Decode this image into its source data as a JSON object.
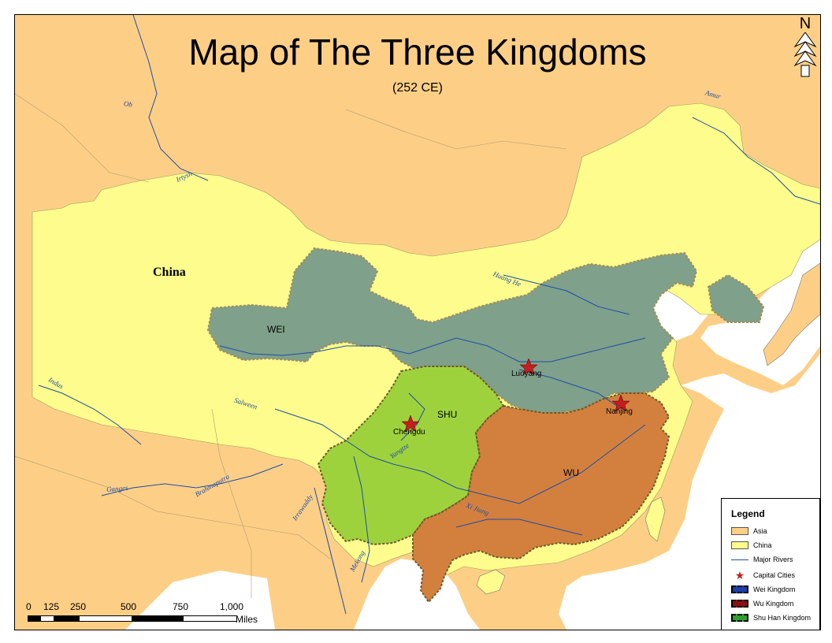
{
  "title": "Map of The Three Kingdoms",
  "subtitle": "(252 CE)",
  "region_labels": {
    "china": "China",
    "wei": "WEI",
    "shu": "SHU",
    "wu": "WU"
  },
  "cities": [
    {
      "name": "Luoyang"
    },
    {
      "name": "Chengdu"
    },
    {
      "name": "Nanjing"
    }
  ],
  "rivers": [
    "Ob",
    "Amur",
    "Irtysh",
    "Huang He",
    "Indus",
    "Salween",
    "Yangtze",
    "Brahmaputra",
    "Ganges",
    "Irrawaddy",
    "Mekong",
    "Xi Jiang"
  ],
  "compass": {
    "letter": "N"
  },
  "legend": {
    "heading": "Legend",
    "items": [
      {
        "label": "Asia",
        "color": "#fdcf86"
      },
      {
        "label": "China",
        "color": "#fdfc8c"
      },
      {
        "label": "Major Rivers",
        "color": "#1f4ea5"
      },
      {
        "label": "Capital Cities",
        "color": "#c41e1e"
      },
      {
        "label": "Wei Kingdom",
        "color": "#1e3fa8"
      },
      {
        "label": "Wu Kingdom",
        "color": "#8c1010"
      },
      {
        "label": "Shu Han Kingdom",
        "color": "#2fa02f"
      }
    ]
  },
  "scale": {
    "ticks": [
      "0",
      "125",
      "250",
      "500",
      "750",
      "1,000"
    ],
    "unit": "Miles"
  },
  "colors": {
    "asia": "#fdcf86",
    "china": "#fdfc8c",
    "sea": "#ffffff",
    "wei": "#7fa08a",
    "shu": "#9ed23c",
    "wu": "#d3803e",
    "river": "#1f4ea5",
    "capital": "#c41e1e"
  }
}
